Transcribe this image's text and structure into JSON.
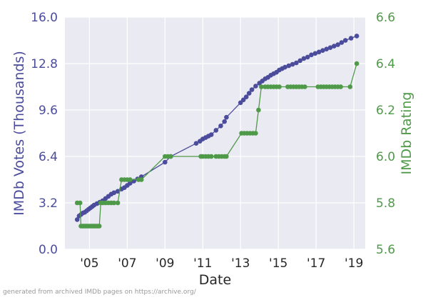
{
  "chart_data": {
    "type": "line",
    "title": "",
    "xlabel": "Date",
    "ylabel_left": "IMDb Votes (Thousands)",
    "ylabel_right": "IMDb Rating",
    "x_range": [
      2003.7,
      2019.6
    ],
    "x_ticks": [
      {
        "x": 2005,
        "label": "'05"
      },
      {
        "x": 2007,
        "label": "'07"
      },
      {
        "x": 2009,
        "label": "'09"
      },
      {
        "x": 2011,
        "label": "'11"
      },
      {
        "x": 2013,
        "label": "'13"
      },
      {
        "x": 2015,
        "label": "'15"
      },
      {
        "x": 2017,
        "label": "'17"
      },
      {
        "x": 2019,
        "label": "'19"
      }
    ],
    "y_left_range": [
      0,
      16
    ],
    "y_left_ticks": [
      "0.0",
      "3.2",
      "6.4",
      "9.6",
      "12.8",
      "16.0"
    ],
    "y_right_range": [
      5.6,
      6.6
    ],
    "y_right_ticks": [
      "5.6",
      "5.8",
      "6.0",
      "6.2",
      "6.4",
      "6.6"
    ],
    "grid": true,
    "legend": "none",
    "series": [
      {
        "axis": "left",
        "color": "#4c4c9d",
        "points": [
          [
            2004.35,
            2.05
          ],
          [
            2004.45,
            2.3
          ],
          [
            2004.55,
            2.4
          ],
          [
            2004.65,
            2.5
          ],
          [
            2004.75,
            2.55
          ],
          [
            2004.85,
            2.65
          ],
          [
            2004.95,
            2.75
          ],
          [
            2005.05,
            2.85
          ],
          [
            2005.15,
            2.95
          ],
          [
            2005.25,
            3.05
          ],
          [
            2005.4,
            3.15
          ],
          [
            2005.55,
            3.25
          ],
          [
            2005.7,
            3.35
          ],
          [
            2005.85,
            3.5
          ],
          [
            2006.0,
            3.65
          ],
          [
            2006.15,
            3.8
          ],
          [
            2006.3,
            3.9
          ],
          [
            2006.5,
            4.0
          ],
          [
            2006.7,
            4.15
          ],
          [
            2006.85,
            4.25
          ],
          [
            2007.0,
            4.4
          ],
          [
            2007.15,
            4.55
          ],
          [
            2007.35,
            4.7
          ],
          [
            2007.55,
            4.85
          ],
          [
            2007.75,
            5.0
          ],
          [
            2009.0,
            6.0
          ],
          [
            2009.3,
            6.4
          ],
          [
            2010.65,
            7.3
          ],
          [
            2010.85,
            7.45
          ],
          [
            2011.0,
            7.6
          ],
          [
            2011.15,
            7.7
          ],
          [
            2011.3,
            7.8
          ],
          [
            2011.45,
            7.9
          ],
          [
            2011.7,
            8.2
          ],
          [
            2011.95,
            8.5
          ],
          [
            2012.15,
            8.8
          ],
          [
            2012.25,
            9.1
          ],
          [
            2013.0,
            10.1
          ],
          [
            2013.15,
            10.3
          ],
          [
            2013.3,
            10.5
          ],
          [
            2013.45,
            10.75
          ],
          [
            2013.6,
            11.0
          ],
          [
            2013.8,
            11.25
          ],
          [
            2014.0,
            11.45
          ],
          [
            2014.15,
            11.6
          ],
          [
            2014.3,
            11.75
          ],
          [
            2014.45,
            11.85
          ],
          [
            2014.6,
            12.0
          ],
          [
            2014.75,
            12.1
          ],
          [
            2014.9,
            12.2
          ],
          [
            2015.05,
            12.35
          ],
          [
            2015.2,
            12.45
          ],
          [
            2015.35,
            12.55
          ],
          [
            2015.55,
            12.65
          ],
          [
            2015.75,
            12.75
          ],
          [
            2015.95,
            12.85
          ],
          [
            2016.15,
            13.0
          ],
          [
            2016.35,
            13.15
          ],
          [
            2016.55,
            13.25
          ],
          [
            2016.75,
            13.4
          ],
          [
            2016.95,
            13.5
          ],
          [
            2017.15,
            13.6
          ],
          [
            2017.35,
            13.7
          ],
          [
            2017.55,
            13.8
          ],
          [
            2017.75,
            13.9
          ],
          [
            2017.95,
            14.0
          ],
          [
            2018.15,
            14.1
          ],
          [
            2018.35,
            14.25
          ],
          [
            2018.55,
            14.4
          ],
          [
            2018.85,
            14.55
          ],
          [
            2019.15,
            14.7
          ]
        ]
      },
      {
        "axis": "right",
        "color": "#4f9a48",
        "points": [
          [
            2004.35,
            5.8
          ],
          [
            2004.5,
            5.8
          ],
          [
            2004.55,
            5.7
          ],
          [
            2004.62,
            5.7
          ],
          [
            2004.69,
            5.7
          ],
          [
            2004.76,
            5.7
          ],
          [
            2004.83,
            5.7
          ],
          [
            2004.9,
            5.7
          ],
          [
            2004.97,
            5.7
          ],
          [
            2005.04,
            5.7
          ],
          [
            2005.11,
            5.7
          ],
          [
            2005.18,
            5.7
          ],
          [
            2005.25,
            5.7
          ],
          [
            2005.32,
            5.7
          ],
          [
            2005.39,
            5.7
          ],
          [
            2005.45,
            5.7
          ],
          [
            2005.52,
            5.7
          ],
          [
            2005.6,
            5.8
          ],
          [
            2005.7,
            5.8
          ],
          [
            2005.85,
            5.8
          ],
          [
            2006.0,
            5.8
          ],
          [
            2006.15,
            5.8
          ],
          [
            2006.3,
            5.8
          ],
          [
            2006.5,
            5.8
          ],
          [
            2006.7,
            5.9
          ],
          [
            2006.85,
            5.9
          ],
          [
            2007.0,
            5.9
          ],
          [
            2007.15,
            5.9
          ],
          [
            2007.6,
            5.9
          ],
          [
            2007.75,
            5.9
          ],
          [
            2009.0,
            6.0
          ],
          [
            2009.15,
            6.0
          ],
          [
            2009.3,
            6.0
          ],
          [
            2010.9,
            6.0
          ],
          [
            2011.0,
            6.0
          ],
          [
            2011.15,
            6.0
          ],
          [
            2011.3,
            6.0
          ],
          [
            2011.45,
            6.0
          ],
          [
            2011.7,
            6.0
          ],
          [
            2011.85,
            6.0
          ],
          [
            2012.0,
            6.0
          ],
          [
            2012.15,
            6.0
          ],
          [
            2012.25,
            6.0
          ],
          [
            2013.05,
            6.1
          ],
          [
            2013.2,
            6.1
          ],
          [
            2013.35,
            6.1
          ],
          [
            2013.5,
            6.1
          ],
          [
            2013.65,
            6.1
          ],
          [
            2013.8,
            6.1
          ],
          [
            2013.95,
            6.2
          ],
          [
            2014.1,
            6.3
          ],
          [
            2014.3,
            6.3
          ],
          [
            2014.45,
            6.3
          ],
          [
            2014.6,
            6.3
          ],
          [
            2014.75,
            6.3
          ],
          [
            2014.9,
            6.3
          ],
          [
            2015.05,
            6.3
          ],
          [
            2015.5,
            6.3
          ],
          [
            2015.65,
            6.3
          ],
          [
            2015.8,
            6.3
          ],
          [
            2015.95,
            6.3
          ],
          [
            2016.1,
            6.3
          ],
          [
            2016.25,
            6.3
          ],
          [
            2016.4,
            6.3
          ],
          [
            2017.1,
            6.3
          ],
          [
            2017.25,
            6.3
          ],
          [
            2017.4,
            6.3
          ],
          [
            2017.55,
            6.3
          ],
          [
            2017.7,
            6.3
          ],
          [
            2017.85,
            6.3
          ],
          [
            2018.0,
            6.3
          ],
          [
            2018.15,
            6.3
          ],
          [
            2018.3,
            6.3
          ],
          [
            2018.8,
            6.3
          ],
          [
            2019.15,
            6.4
          ]
        ]
      }
    ]
  },
  "footer": {
    "credit": "generated from archived IMDb pages on https://archive.org/"
  }
}
